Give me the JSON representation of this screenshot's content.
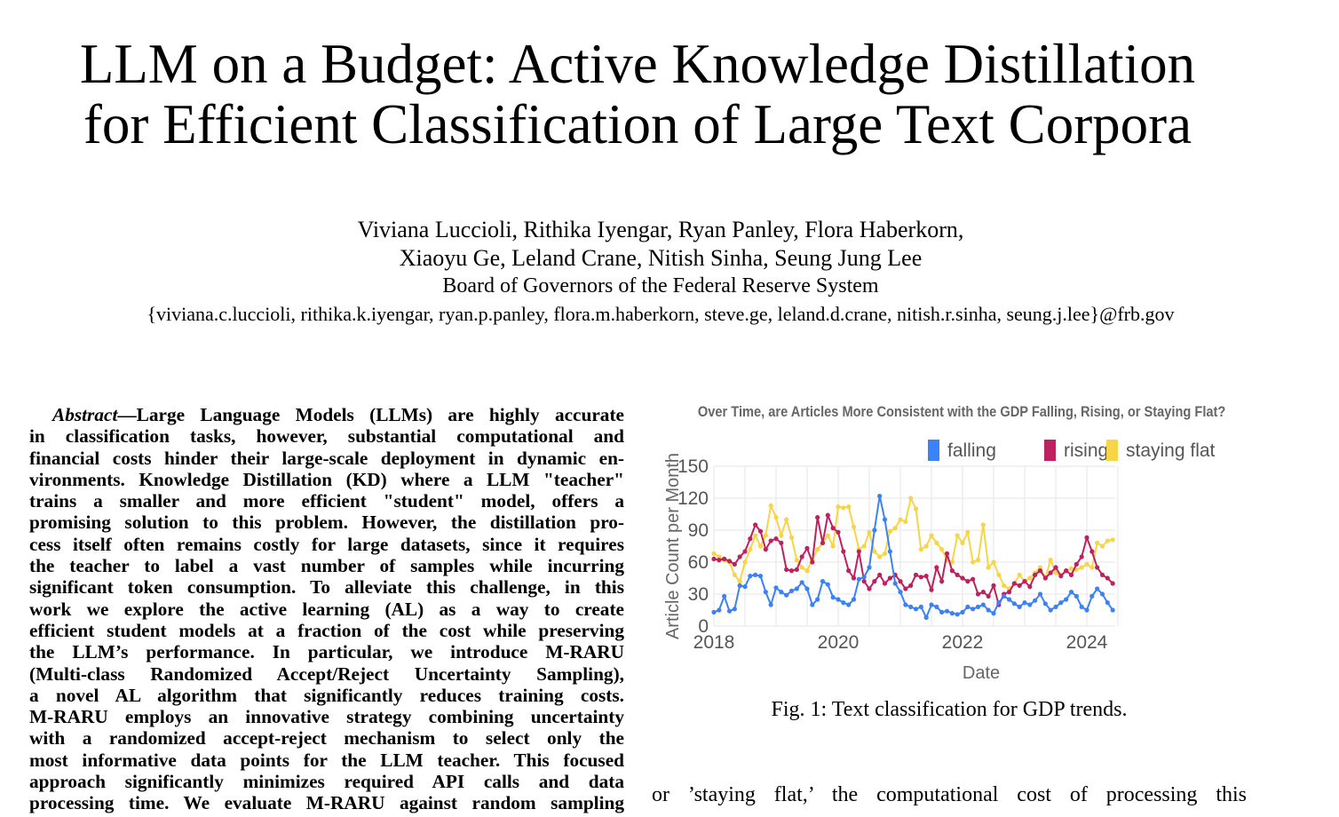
{
  "paper": {
    "title_line1": "LLM on a Budget: Active Knowledge Distillation",
    "title_line2": "for Efficient Classification of Large Text Corpora",
    "authors_line1": "Viviana Luccioli, Rithika Iyengar, Ryan Panley, Flora Haberkorn,",
    "authors_line2": "Xiaoyu Ge, Leland Crane, Nitish Sinha, Seung Jung Lee",
    "affiliation": "Board of Governors of the Federal Reserve System",
    "emails": "{viviana.c.luccioli, rithika.k.iyengar, ryan.p.panley, flora.m.haberkorn, steve.ge, leland.d.crane, nitish.r.sinha, seung.j.lee}@frb.gov"
  },
  "abstract": {
    "label": "Abstract",
    "first_line": "—Large Language Models (LLMs) are highly accurate",
    "lines": [
      "in classification tasks, however, substantial computational and",
      "financial costs hinder their large-scale deployment in dynamic en-",
      "vironments. Knowledge Distillation (KD) where a LLM \"teacher\"",
      "trains a smaller and more efficient \"student\" model, offers a",
      "promising solution to this problem. However, the distillation pro-",
      "cess itself often remains costly for large datasets, since it requires",
      "the teacher to label a vast number of samples while incurring",
      "significant token consumption. To alleviate this challenge, in this",
      "work we explore the active learning (AL) as a way to create",
      "efficient student models at a fraction of the cost while preserving",
      "the LLM’s performance. In particular, we introduce M-RARU",
      "(Multi-class Randomized Accept/Reject Uncertainty Sampling),",
      "a novel AL algorithm that significantly reduces training costs.",
      "M-RARU employs an innovative strategy combining uncertainty",
      "with a randomized accept-reject mechanism to select only the",
      "most informative data points for the LLM teacher. This focused",
      "approach significantly minimizes required API calls and data",
      "processing time. We evaluate M-RARU against random sampling"
    ]
  },
  "figure": {
    "caption": "Fig. 1: Text classification for GDP trends."
  },
  "body_right": "or ’staying flat,’ the computational cost of processing this",
  "chart_data": {
    "type": "line",
    "title": "Over Time, are Articles More Consistent with the GDP Falling, Rising, or Staying Flat?",
    "xlabel": "Date",
    "ylabel": "Article Count per Month",
    "x_start": "2018-01",
    "x_frequency": "monthly",
    "xticks": [
      "2018",
      "2020",
      "2022",
      "2024"
    ],
    "yticks": [
      "0",
      "30",
      "60",
      "90",
      "120",
      "150"
    ],
    "ylim": [
      0,
      150
    ],
    "grid": true,
    "legend_position": "top-right",
    "series": [
      {
        "name": "falling",
        "color": "#3b82f6",
        "values": [
          13,
          15,
          28,
          14,
          16,
          38,
          37,
          47,
          48,
          47,
          32,
          20,
          36,
          32,
          29,
          33,
          35,
          41,
          35,
          20,
          25,
          42,
          39,
          27,
          25,
          22,
          20,
          25,
          44,
          46,
          55,
          90,
          122,
          100,
          70,
          40,
          32,
          20,
          18,
          16,
          18,
          8,
          20,
          18,
          13,
          14,
          12,
          11,
          13,
          18,
          16,
          18,
          20,
          15,
          12,
          22,
          28,
          25,
          21,
          18,
          22,
          20,
          24,
          30,
          21,
          15,
          18,
          22,
          25,
          32,
          28,
          18,
          15,
          28,
          35,
          30,
          22,
          15
        ]
      },
      {
        "name": "rising",
        "color": "#be2160",
        "values": [
          63,
          62,
          63,
          61,
          58,
          65,
          70,
          82,
          95,
          89,
          72,
          80,
          82,
          78,
          53,
          52,
          53,
          65,
          73,
          60,
          102,
          78,
          104,
          92,
          88,
          70,
          52,
          45,
          70,
          42,
          35,
          42,
          48,
          40,
          45,
          48,
          42,
          35,
          38,
          48,
          46,
          47,
          34,
          55,
          42,
          68,
          52,
          48,
          45,
          42,
          44,
          30,
          32,
          28,
          38,
          20,
          30,
          32,
          40,
          38,
          42,
          37,
          48,
          52,
          45,
          50,
          55,
          47,
          52,
          48,
          58,
          65,
          83,
          70,
          55,
          48,
          45,
          40
        ]
      },
      {
        "name": "staying flat",
        "color": "#f8d447",
        "values": [
          68,
          65,
          62,
          60,
          48,
          42,
          60,
          72,
          85,
          75,
          85,
          113,
          102,
          85,
          100,
          83,
          62,
          55,
          52,
          62,
          72,
          78,
          85,
          75,
          112,
          111,
          112,
          93,
          72,
          75,
          88,
          70,
          65,
          68,
          89,
          92,
          100,
          98,
          120,
          110,
          72,
          75,
          85,
          78,
          72,
          62,
          60,
          85,
          78,
          88,
          60,
          62,
          95,
          55,
          60,
          48,
          38,
          35,
          40,
          48,
          42,
          45,
          50,
          55,
          45,
          62,
          50,
          48,
          52,
          54,
          53,
          55,
          58,
          55,
          78,
          75,
          80,
          81
        ]
      }
    ]
  }
}
